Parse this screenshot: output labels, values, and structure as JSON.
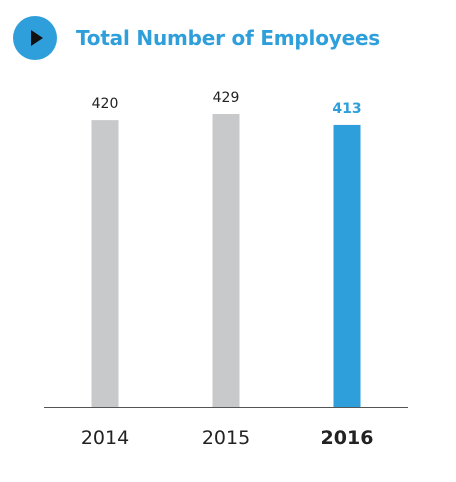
{
  "header": {
    "title": "Total Number of Employees",
    "icon": "play-icon"
  },
  "colors": {
    "accent": "#2e9fdb",
    "bar_default": "#c8c9cb",
    "axis": "#555555",
    "text": "#222222"
  },
  "chart_data": {
    "type": "bar",
    "title": "Total Number of Employees",
    "categories": [
      "2014",
      "2015",
      "2016"
    ],
    "values": [
      420,
      429,
      413
    ],
    "highlight": "2016",
    "xlabel": "",
    "ylabel": "",
    "ylim": [
      0,
      429
    ],
    "grid": false,
    "legend": "none"
  }
}
